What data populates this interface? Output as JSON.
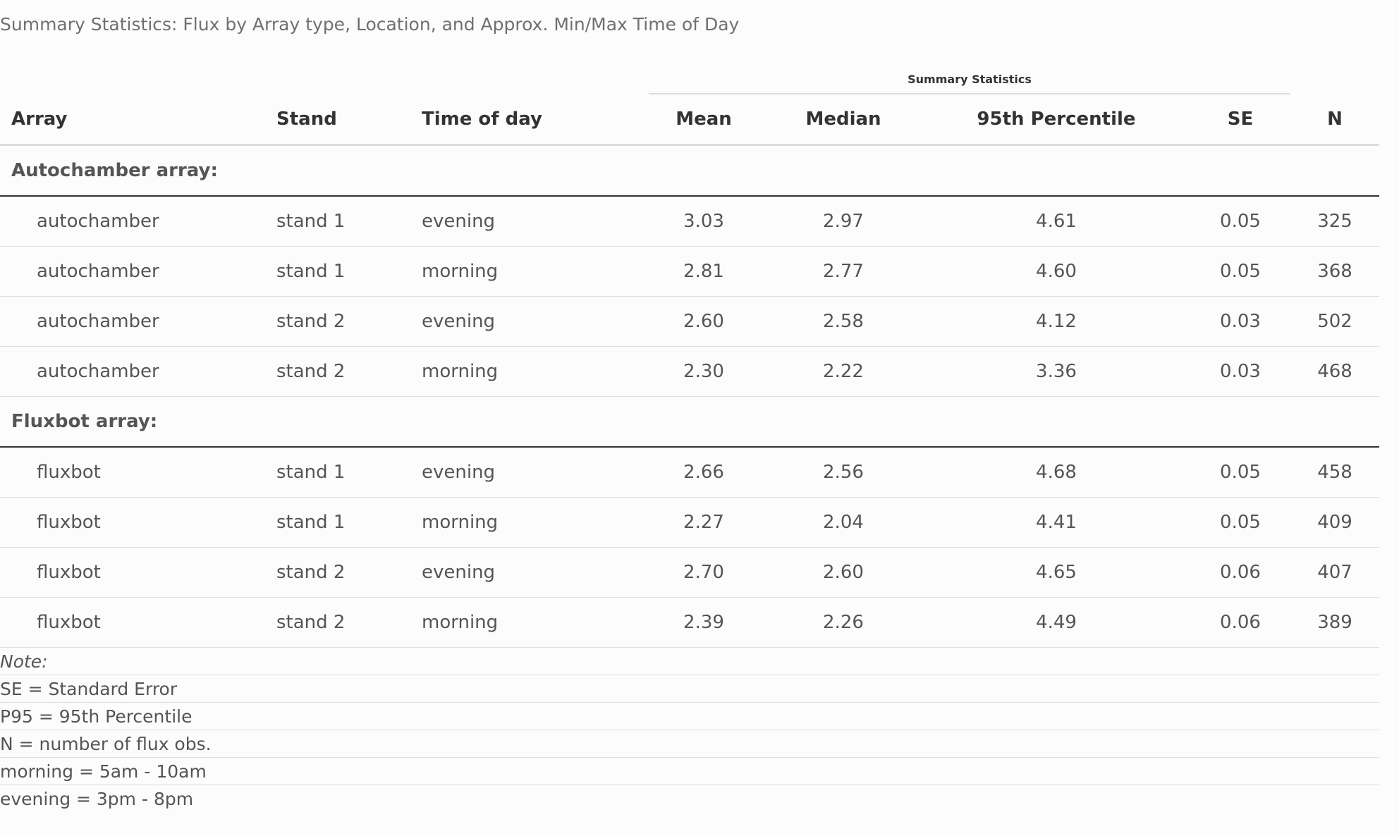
{
  "caption": "Summary Statistics: Flux by Array type, Location, and Approx. Min/Max Time of Day",
  "spanner": "Summary Statistics",
  "columns": {
    "array": "Array",
    "stand": "Stand",
    "time": "Time of day",
    "mean": "Mean",
    "median": "Median",
    "p95": "95th Percentile",
    "se": "SE",
    "n": "N"
  },
  "groups": [
    {
      "label": "Autochamber array:",
      "rows": [
        {
          "array": "autochamber",
          "stand": "stand 1",
          "time": "evening",
          "mean": "3.03",
          "median": "2.97",
          "p95": "4.61",
          "se": "0.05",
          "n": "325"
        },
        {
          "array": "autochamber",
          "stand": "stand 1",
          "time": "morning",
          "mean": "2.81",
          "median": "2.77",
          "p95": "4.60",
          "se": "0.05",
          "n": "368"
        },
        {
          "array": "autochamber",
          "stand": "stand 2",
          "time": "evening",
          "mean": "2.60",
          "median": "2.58",
          "p95": "4.12",
          "se": "0.03",
          "n": "502"
        },
        {
          "array": "autochamber",
          "stand": "stand 2",
          "time": "morning",
          "mean": "2.30",
          "median": "2.22",
          "p95": "3.36",
          "se": "0.03",
          "n": "468"
        }
      ]
    },
    {
      "label": "Fluxbot array:",
      "rows": [
        {
          "array": "fluxbot",
          "stand": "stand 1",
          "time": "evening",
          "mean": "2.66",
          "median": "2.56",
          "p95": "4.68",
          "se": "0.05",
          "n": "458"
        },
        {
          "array": "fluxbot",
          "stand": "stand 1",
          "time": "morning",
          "mean": "2.27",
          "median": "2.04",
          "p95": "4.41",
          "se": "0.05",
          "n": "409"
        },
        {
          "array": "fluxbot",
          "stand": "stand 2",
          "time": "evening",
          "mean": "2.70",
          "median": "2.60",
          "p95": "4.65",
          "se": "0.06",
          "n": "407"
        },
        {
          "array": "fluxbot",
          "stand": "stand 2",
          "time": "morning",
          "mean": "2.39",
          "median": "2.26",
          "p95": "4.49",
          "se": "0.06",
          "n": "389"
        }
      ]
    }
  ],
  "notes": {
    "title": "Note:",
    "lines": [
      "SE = Standard Error",
      "P95 = 95th Percentile",
      "N = number of flux obs.",
      "morning = 5am - 10am",
      "evening = 3pm - 8pm"
    ]
  }
}
